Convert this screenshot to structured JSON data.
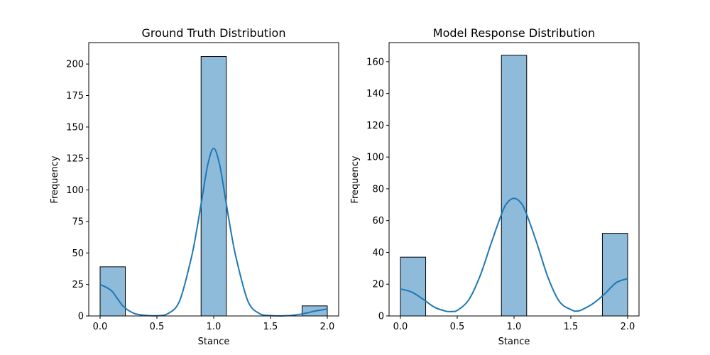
{
  "chart_data": [
    {
      "type": "bar",
      "title": "Ground Truth Distribution",
      "xlabel": "Stance",
      "ylabel": "Frequency",
      "xlim": [
        -0.1,
        2.1
      ],
      "ylim": [
        0,
        217
      ],
      "xticks": [
        0.0,
        0.5,
        1.0,
        1.5,
        2.0
      ],
      "xtick_labels": [
        "0.0",
        "0.5",
        "1.0",
        "1.5",
        "2.0"
      ],
      "yticks": [
        0,
        25,
        50,
        75,
        100,
        125,
        150,
        175,
        200
      ],
      "ytick_labels": [
        "0",
        "25",
        "50",
        "75",
        "100",
        "125",
        "150",
        "175",
        "200"
      ],
      "bars": [
        {
          "x0": 0.0,
          "x1": 0.2222,
          "value": 39
        },
        {
          "x0": 0.8889,
          "x1": 1.1111,
          "value": 206
        },
        {
          "x0": 1.7778,
          "x1": 2.0,
          "value": 8
        }
      ],
      "kde": {
        "x": [
          0.0,
          0.1,
          0.2,
          0.3,
          0.4,
          0.5,
          0.6,
          0.7,
          0.8,
          0.85,
          0.9,
          0.95,
          1.0,
          1.05,
          1.1,
          1.15,
          1.2,
          1.3,
          1.4,
          1.5,
          1.6,
          1.7,
          1.8,
          1.9,
          2.0
        ],
        "y": [
          25,
          20,
          8,
          2,
          0.5,
          0.2,
          2,
          12,
          45,
          68,
          95,
          121,
          133,
          121,
          95,
          68,
          45,
          12,
          2,
          0.3,
          0.1,
          0.6,
          2,
          4,
          5.5
        ]
      },
      "grid": false,
      "bar_color": "#8fbbdb",
      "line_color": "#1f77b4"
    },
    {
      "type": "bar",
      "title": "Model Response Distribution",
      "xlabel": "Stance",
      "ylabel": "Frequency",
      "xlim": [
        -0.1,
        2.1
      ],
      "ylim": [
        0,
        172
      ],
      "xticks": [
        0.0,
        0.5,
        1.0,
        1.5,
        2.0
      ],
      "xtick_labels": [
        "0.0",
        "0.5",
        "1.0",
        "1.5",
        "2.0"
      ],
      "yticks": [
        0,
        20,
        40,
        60,
        80,
        100,
        120,
        140,
        160
      ],
      "ytick_labels": [
        "0",
        "20",
        "40",
        "60",
        "80",
        "100",
        "120",
        "140",
        "160"
      ],
      "bars": [
        {
          "x0": 0.0,
          "x1": 0.2222,
          "value": 37
        },
        {
          "x0": 0.8889,
          "x1": 1.1111,
          "value": 164
        },
        {
          "x0": 1.7778,
          "x1": 2.0,
          "value": 52
        }
      ],
      "kde": {
        "x": [
          0.0,
          0.1,
          0.2,
          0.3,
          0.4,
          0.45,
          0.5,
          0.6,
          0.7,
          0.8,
          0.9,
          0.95,
          1.0,
          1.05,
          1.1,
          1.2,
          1.3,
          1.4,
          1.5,
          1.55,
          1.6,
          1.7,
          1.8,
          1.9,
          2.0
        ],
        "y": [
          17,
          15,
          10.5,
          5.5,
          3,
          2.8,
          3.5,
          10,
          25,
          46,
          66,
          72,
          74,
          72,
          66,
          46,
          24,
          9,
          4,
          3,
          4,
          8,
          14,
          21,
          23.5
        ]
      },
      "grid": false,
      "bar_color": "#8fbbdb",
      "line_color": "#1f77b4"
    }
  ]
}
